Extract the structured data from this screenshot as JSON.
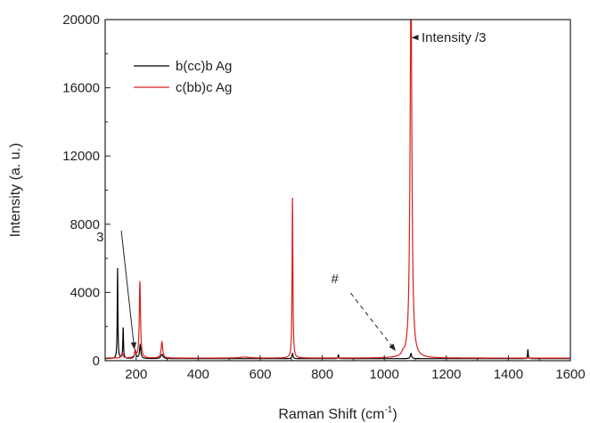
{
  "chart_data": {
    "type": "line",
    "xlabel_main": "Raman Shift (cm",
    "xlabel_sup": "-1",
    "xlabel_end": ")",
    "ylabel": "Intensity (a. u.)",
    "xlim": [
      100,
      1600
    ],
    "ylim": [
      0,
      20000
    ],
    "xticks": [
      200,
      400,
      600,
      800,
      1000,
      1200,
      1400,
      1600
    ],
    "yticks": [
      0,
      4000,
      8000,
      12000,
      16000,
      20000
    ],
    "grid": false,
    "legend_position": "top-left",
    "series": [
      {
        "name": "b(cc)b Ag",
        "color": "#000000",
        "baseline": 120,
        "peaks": [
          {
            "x": 140,
            "y": 5300,
            "w": 1.2
          },
          {
            "x": 158,
            "y": 1800,
            "w": 1.3
          },
          {
            "x": 197,
            "y": 500,
            "w": 2.5
          },
          {
            "x": 213,
            "y": 800,
            "w": 2.5
          },
          {
            "x": 283,
            "y": 250,
            "w": 4
          },
          {
            "x": 704,
            "y": 300,
            "w": 2
          },
          {
            "x": 852,
            "y": 250,
            "w": 1.2
          },
          {
            "x": 1086,
            "y": 300,
            "w": 2.5
          },
          {
            "x": 1463,
            "y": 550,
            "w": 1.2
          }
        ]
      },
      {
        "name": "c(bb)c Ag",
        "color": "#d81e1e",
        "baseline": 150,
        "peaks": [
          {
            "x": 155,
            "y": 300,
            "w": 3
          },
          {
            "x": 197,
            "y": 350,
            "w": 2.5
          },
          {
            "x": 212,
            "y": 4500,
            "w": 2.3
          },
          {
            "x": 283,
            "y": 950,
            "w": 3
          },
          {
            "x": 550,
            "y": 60,
            "w": 20
          },
          {
            "x": 704,
            "y": 9400,
            "w": 1.5
          },
          {
            "x": 1060,
            "y": 150,
            "w": 4
          },
          {
            "x": 1086,
            "y": 22000,
            "w": 3.5
          }
        ]
      }
    ],
    "annotations": [
      {
        "text": "Intensity /3",
        "x": 1120,
        "y": 18950,
        "arrow_to_x": 1090,
        "style": "solid-arrow"
      },
      {
        "text": "3",
        "x": 175,
        "y": 7100,
        "arrow_to_x": 194,
        "arrow_to_y": 700,
        "style": "solid-arrow"
      },
      {
        "text": "#",
        "x": 995,
        "y": 4800,
        "arrow_to_x": 1058,
        "arrow_to_y": 500,
        "style": "dashed-arrow"
      }
    ]
  }
}
